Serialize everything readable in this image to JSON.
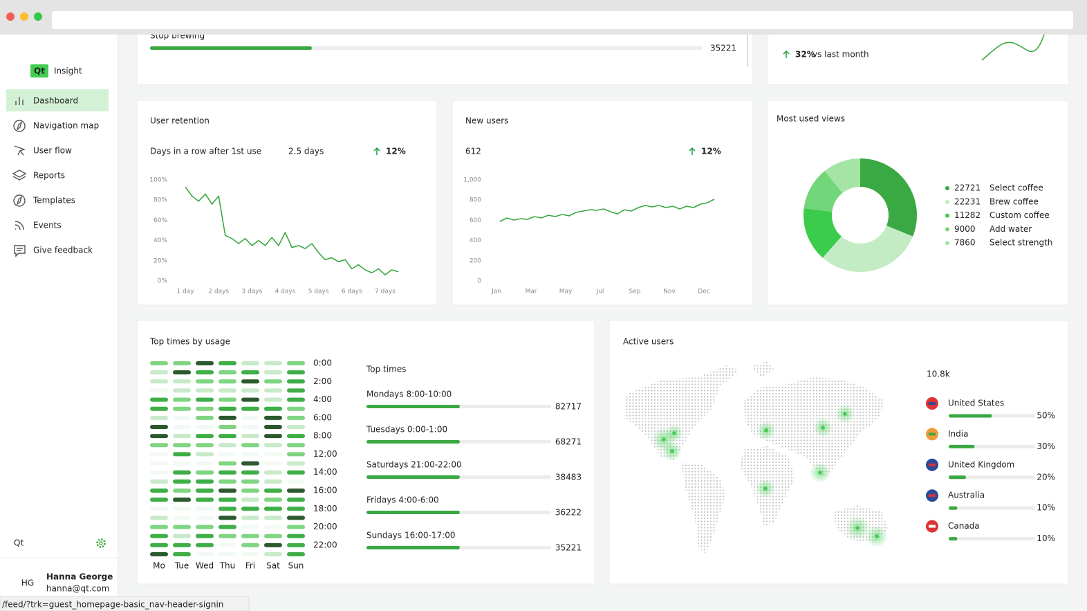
{
  "browser": {
    "status_url": "/feed/?trk=guest_homepage-basic_nav-header-signin"
  },
  "sidebar": {
    "logo_badge": "Qt",
    "logo_text": "Insight",
    "nav": [
      "Dashboard",
      "Navigation map",
      "User flow",
      "Reports",
      "Templates",
      "Events",
      "Give feedback"
    ],
    "org": "Qt",
    "user": {
      "initials": "HG",
      "name": "Hanna George",
      "email": "hanna@qt.com"
    }
  },
  "top_left_card": {
    "label": "Stop brewing",
    "value": 35221
  },
  "top_right_card": {
    "change": "32%",
    "note": "vs last month"
  },
  "chart_data": [
    {
      "type": "line",
      "title": "User retention",
      "subtitle": "Days in a row after 1st use",
      "headline": "2.5 days",
      "change": "12%",
      "color": "#3aa843",
      "x": [
        1.0,
        1.2,
        1.4,
        1.6,
        1.8,
        2.0,
        2.2,
        2.4,
        2.6,
        2.8,
        3.0,
        3.2,
        3.4,
        3.6,
        3.8,
        4.0,
        4.2,
        4.4,
        4.6,
        4.8,
        5.0,
        5.2,
        5.4,
        5.6,
        5.8,
        6.0,
        6.2,
        6.4,
        6.6,
        6.8,
        7.0,
        7.2,
        7.4
      ],
      "values": [
        93,
        84,
        79,
        86,
        76,
        84,
        45,
        42,
        37,
        42,
        35,
        40,
        35,
        43,
        35,
        48,
        33,
        35,
        32,
        37,
        28,
        21,
        23,
        19,
        21,
        12,
        16,
        11,
        8,
        12,
        6,
        11,
        9
      ],
      "xlim": [
        0.5,
        7.5
      ],
      "xticks": [
        {
          "value": 1,
          "label": "1 day"
        },
        {
          "value": 2,
          "label": "2 days"
        },
        {
          "value": 3,
          "label": "3 days"
        },
        {
          "value": 4,
          "label": "4 days"
        },
        {
          "value": 5,
          "label": "5 days"
        },
        {
          "value": 6,
          "label": "6 days"
        },
        {
          "value": 7,
          "label": "7 days"
        }
      ],
      "ylim": [
        0,
        100
      ],
      "yticks": [
        {
          "value": 0,
          "label": "0%"
        },
        {
          "value": 20,
          "label": "20%"
        },
        {
          "value": 40,
          "label": "40%"
        },
        {
          "value": 60,
          "label": "60%"
        },
        {
          "value": 80,
          "label": "80%"
        },
        {
          "value": 100,
          "label": "100%"
        }
      ]
    },
    {
      "type": "line",
      "title": "New users",
      "headline": 612,
      "change": "12%",
      "color": "#3aa843",
      "x": [
        0.1,
        0.3,
        0.5,
        0.7,
        0.9,
        1.1,
        1.3,
        1.5,
        1.7,
        1.9,
        2.1,
        2.3,
        2.5,
        2.7,
        2.9,
        3.1,
        3.3,
        3.5,
        3.7,
        3.9,
        4.1,
        4.3,
        4.5,
        4.7,
        4.9,
        5.1,
        5.3,
        5.5,
        5.7,
        5.9,
        6.1,
        6.3
      ],
      "values": [
        589,
        623,
        603,
        616,
        610,
        637,
        623,
        651,
        637,
        658,
        644,
        678,
        692,
        705,
        699,
        712,
        685,
        664,
        705,
        692,
        726,
        747,
        733,
        747,
        726,
        740,
        712,
        740,
        726,
        760,
        774,
        808
      ],
      "xlim": [
        -0.4,
        6.5
      ],
      "xticks": [
        {
          "value": 0,
          "label": "Jan"
        },
        {
          "value": 1,
          "label": "Mar"
        },
        {
          "value": 2,
          "label": "May"
        },
        {
          "value": 3,
          "label": "Jul"
        },
        {
          "value": 4,
          "label": "Sep"
        },
        {
          "value": 5,
          "label": "Nov"
        },
        {
          "value": 6,
          "label": "Dec"
        }
      ],
      "ylim": [
        0,
        1000
      ],
      "yticks": [
        0,
        200,
        400,
        600,
        800,
        {
          "value": 1000,
          "label": "1,000"
        }
      ]
    },
    {
      "type": "pie",
      "title": "Most used views",
      "categories": [
        "Select coffee",
        "Brew coffee",
        "Custom coffee",
        "Add water",
        "Select strength"
      ],
      "values": [
        22721,
        22231,
        11282,
        9000,
        7860
      ],
      "colors": [
        "#3aa843",
        "#c4ecc4",
        "#3ccc4c",
        "#72d67b",
        "#a6e4a6"
      ]
    },
    {
      "type": "heatmap",
      "title": "Top times by usage",
      "categories": [
        "Mo",
        "Tue",
        "Wed",
        "Thu",
        "Fri",
        "Sat",
        "Sun"
      ],
      "y_labels": [
        "0:00",
        null,
        "2:00",
        null,
        "4:00",
        null,
        "6:00",
        null,
        "8:00",
        null,
        "12:00",
        null,
        "14:00",
        null,
        "16:00",
        null,
        "18:00",
        null,
        "20:00",
        null,
        "22:00",
        null
      ],
      "colors": [
        "#f3f9f3",
        "#c8eac9",
        "#7fd581",
        "#3fae47",
        "#2c5a2e"
      ],
      "values": [
        [
          2,
          2,
          4,
          3,
          1,
          1,
          2
        ],
        [
          1,
          4,
          3,
          2,
          3,
          1,
          3
        ],
        [
          1,
          1,
          2,
          2,
          4,
          2,
          3
        ],
        [
          0,
          1,
          1,
          1,
          1,
          1,
          3
        ],
        [
          3,
          2,
          3,
          2,
          4,
          1,
          3
        ],
        [
          3,
          2,
          2,
          3,
          3,
          3,
          2
        ],
        [
          1,
          0,
          2,
          4,
          0,
          4,
          2
        ],
        [
          4,
          0,
          0,
          2,
          0,
          4,
          1
        ],
        [
          4,
          1,
          3,
          3,
          1,
          4,
          3
        ],
        [
          2,
          2,
          2,
          1,
          2,
          1,
          2
        ],
        [
          0,
          3,
          1,
          0,
          0,
          0,
          2
        ],
        [
          0,
          0,
          0,
          2,
          4,
          0,
          1
        ],
        [
          0,
          3,
          2,
          3,
          3,
          1,
          3
        ],
        [
          1,
          3,
          3,
          2,
          2,
          1,
          0
        ],
        [
          3,
          2,
          3,
          4,
          2,
          3,
          4
        ],
        [
          3,
          4,
          3,
          3,
          1,
          2,
          3
        ],
        [
          0,
          0,
          0,
          3,
          3,
          3,
          3
        ],
        [
          1,
          0,
          0,
          4,
          1,
          1,
          4
        ],
        [
          2,
          2,
          2,
          3,
          0,
          0,
          2
        ],
        [
          3,
          1,
          3,
          2,
          2,
          2,
          3
        ],
        [
          3,
          3,
          3,
          0,
          2,
          4,
          3
        ],
        [
          4,
          3,
          0,
          0,
          0,
          1,
          3
        ]
      ]
    }
  ],
  "top_times": {
    "title": "Top times",
    "items": [
      {
        "label": "Mondays 8:00-10:00",
        "value": 82717
      },
      {
        "label": "Tuesdays 0:00-1:00",
        "value": 68271
      },
      {
        "label": "Saturdays 21:00-22:00",
        "value": 38483
      },
      {
        "label": "Fridays 4:00-6:00",
        "value": 36222
      },
      {
        "label": "Sundays  16:00-17:00",
        "value": 35221
      }
    ]
  },
  "active_users": {
    "title": "Active users",
    "headline": "10.8k",
    "countries": [
      {
        "name": "United States",
        "value": 50,
        "label": "50%"
      },
      {
        "name": "India",
        "value": 30,
        "label": "30%"
      },
      {
        "name": "United Kingdom",
        "value": 20,
        "label": "20%"
      },
      {
        "name": "Australia",
        "value": 10,
        "label": "10%"
      },
      {
        "name": "Canada",
        "value": 10,
        "label": "10%"
      }
    ]
  }
}
